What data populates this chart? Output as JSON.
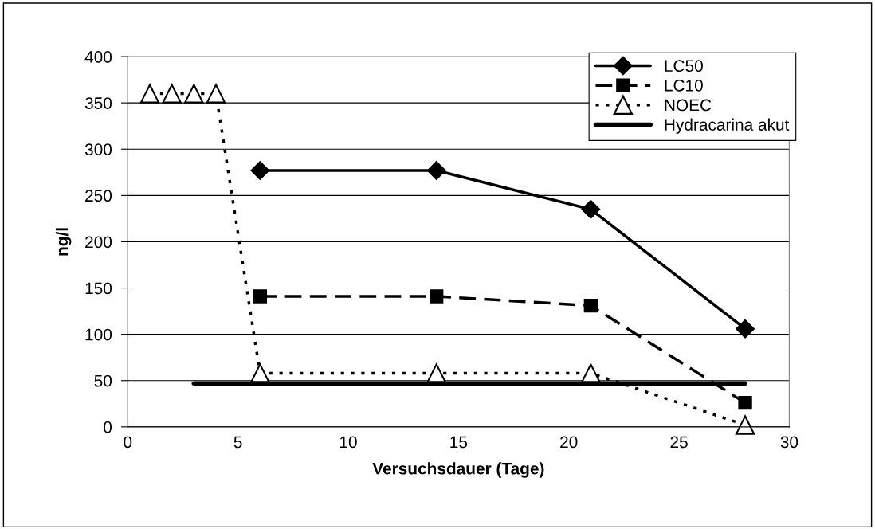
{
  "chart_data": {
    "type": "line",
    "xlabel": "Versuchsdauer (Tage)",
    "ylabel": "ng/l",
    "xlim": [
      0,
      30
    ],
    "xticks": [
      0,
      5,
      10,
      15,
      20,
      25,
      30
    ],
    "ylim": [
      0,
      400
    ],
    "yticks": [
      0,
      50,
      100,
      150,
      200,
      250,
      300,
      350,
      400
    ],
    "grid": "y",
    "legend": "top right",
    "series": [
      {
        "name": "LC50",
        "color": "#000000",
        "x": [
          6,
          14,
          21,
          28
        ],
        "values": [
          277,
          277,
          235,
          106
        ],
        "marker": "diamond",
        "line_style": "solid"
      },
      {
        "name": "LC10",
        "color": "#000000",
        "x": [
          6,
          14,
          21,
          28
        ],
        "values": [
          141,
          141,
          131,
          26
        ],
        "marker": "square",
        "line_style": "dashed"
      },
      {
        "name": "NOEC",
        "color": "#000000",
        "x": [
          1,
          2,
          3,
          4,
          6,
          14,
          21,
          28
        ],
        "values": [
          360,
          360,
          360,
          360,
          58,
          58,
          58,
          2
        ],
        "marker": "triangle",
        "line_style": "dotted"
      },
      {
        "name": "Hydracarina akut",
        "color": "#000000",
        "x": [
          3,
          28
        ],
        "values": [
          47,
          47
        ],
        "marker": "none",
        "line_style": "solid"
      }
    ]
  }
}
